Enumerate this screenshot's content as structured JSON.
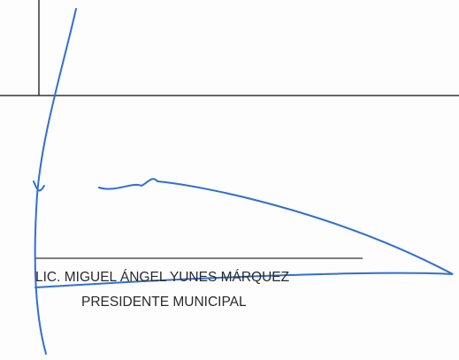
{
  "signature_block": {
    "name": "LIC. MIGUEL ÁNGEL YUNES MÁRQUEZ",
    "position": "PRESIDENTE MUNICIPAL"
  }
}
